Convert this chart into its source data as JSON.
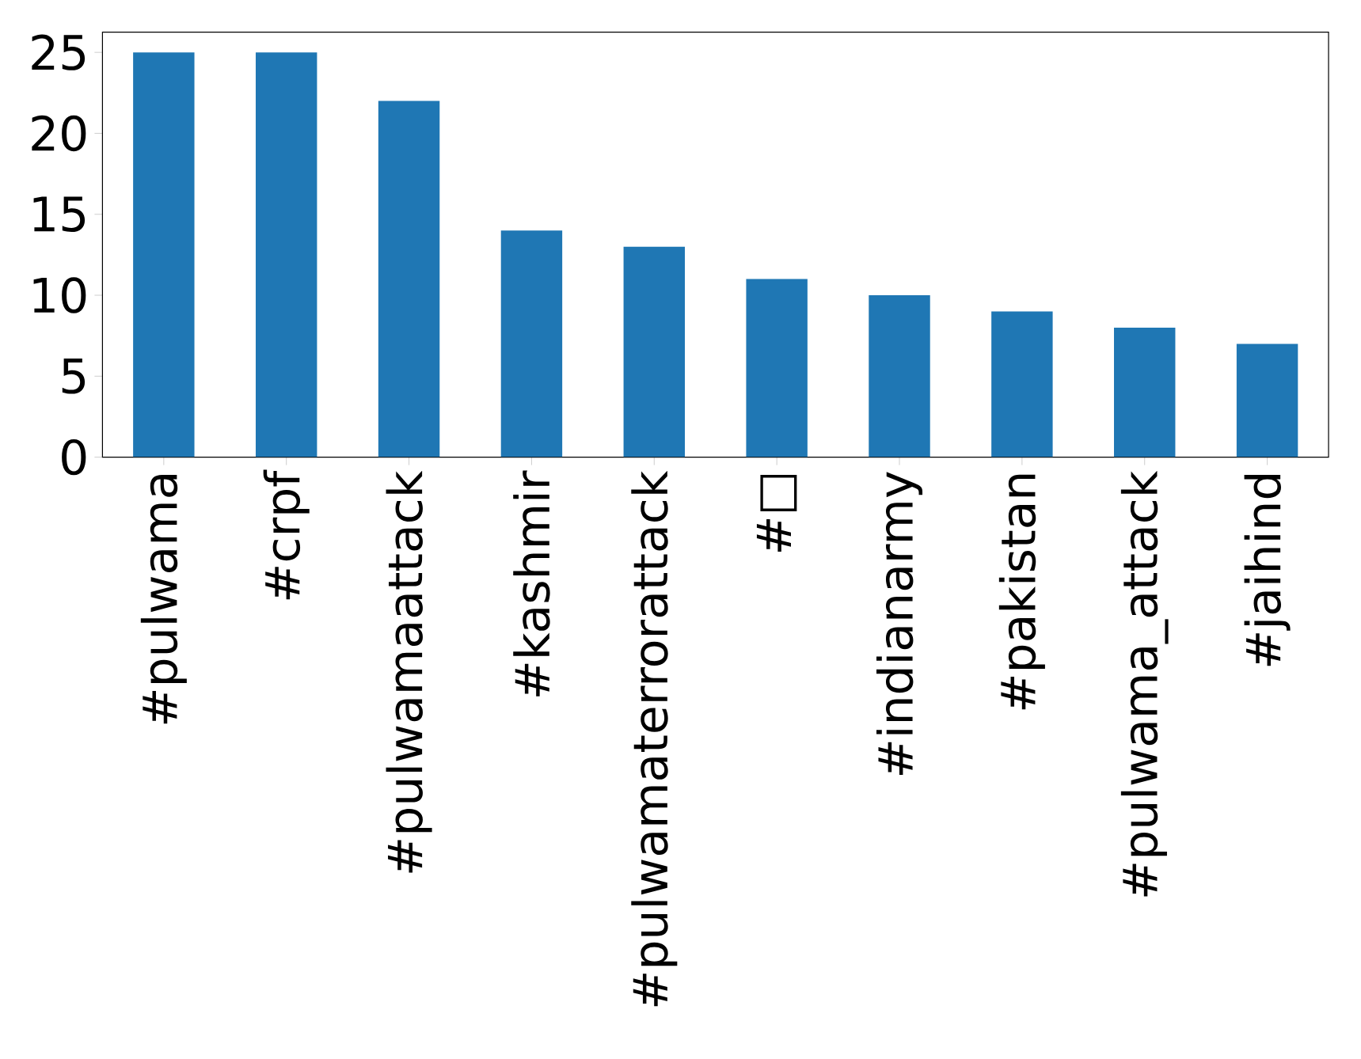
{
  "chart_data": {
    "type": "bar",
    "categories": [
      "#pulwama",
      "#crpf",
      "#pulwamaattack",
      "#kashmir",
      "#pulwamaterrorattack",
      "#□",
      "#indianarmy",
      "#pakistan",
      "#pulwama_attack",
      "#jaihind"
    ],
    "values": [
      25,
      25,
      22,
      14,
      13,
      11,
      10,
      9,
      8,
      7
    ],
    "color": "#1f77b4",
    "ylim": [
      0,
      26.25
    ],
    "yticks": [
      0,
      5,
      10,
      15,
      20,
      25
    ]
  }
}
